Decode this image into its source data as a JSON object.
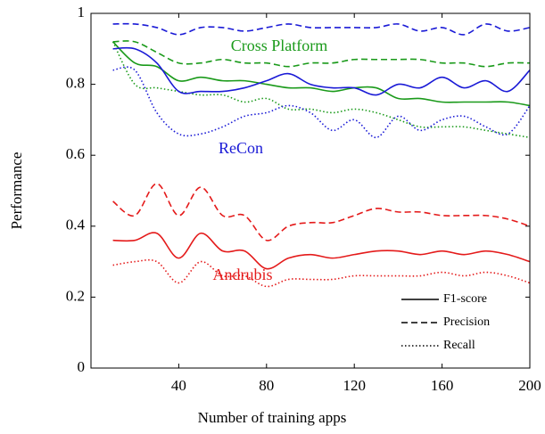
{
  "chart_data": {
    "type": "line",
    "xlabel": "Number of training apps",
    "ylabel": "Performance",
    "x": [
      10,
      20,
      30,
      40,
      50,
      60,
      70,
      80,
      90,
      100,
      110,
      120,
      130,
      140,
      150,
      160,
      170,
      180,
      190,
      200
    ],
    "xlim": [
      0,
      200
    ],
    "xticks": [
      40,
      80,
      120,
      160,
      200
    ],
    "ylim": [
      0,
      1
    ],
    "yticks": [
      0,
      0.2,
      0.4,
      0.6,
      0.8,
      1
    ],
    "legend_position": "lower right",
    "legend": [
      {
        "label": "F1-score",
        "dash": "solid"
      },
      {
        "label": "Precision",
        "dash": "dashed"
      },
      {
        "label": "Recall",
        "dash": "dotted"
      }
    ],
    "methods": [
      {
        "label": "Cross Platform",
        "color": "#1a9a1a",
        "lines": [
          [
            0.92,
            0.86,
            0.85,
            0.81,
            0.82,
            0.81,
            0.81,
            0.8,
            0.79,
            0.79,
            0.78,
            0.79,
            0.79,
            0.76,
            0.76,
            0.75,
            0.75,
            0.75,
            0.75,
            0.74
          ],
          [
            0.92,
            0.92,
            0.89,
            0.86,
            0.86,
            0.87,
            0.86,
            0.86,
            0.85,
            0.86,
            0.86,
            0.87,
            0.87,
            0.87,
            0.87,
            0.86,
            0.86,
            0.85,
            0.86,
            0.86
          ],
          [
            0.92,
            0.8,
            0.79,
            0.78,
            0.77,
            0.77,
            0.75,
            0.76,
            0.73,
            0.73,
            0.72,
            0.73,
            0.72,
            0.7,
            0.68,
            0.68,
            0.68,
            0.67,
            0.66,
            0.65
          ]
        ]
      },
      {
        "label": "ReCon",
        "color": "#1a1ad6",
        "lines": [
          [
            0.9,
            0.9,
            0.86,
            0.78,
            0.78,
            0.78,
            0.79,
            0.81,
            0.83,
            0.8,
            0.79,
            0.79,
            0.77,
            0.8,
            0.79,
            0.82,
            0.79,
            0.81,
            0.78,
            0.84
          ],
          [
            0.97,
            0.97,
            0.96,
            0.94,
            0.96,
            0.96,
            0.95,
            0.96,
            0.97,
            0.96,
            0.96,
            0.96,
            0.96,
            0.97,
            0.95,
            0.96,
            0.94,
            0.97,
            0.95,
            0.96
          ],
          [
            0.84,
            0.84,
            0.72,
            0.66,
            0.66,
            0.68,
            0.71,
            0.72,
            0.74,
            0.72,
            0.67,
            0.7,
            0.65,
            0.71,
            0.67,
            0.7,
            0.71,
            0.68,
            0.66,
            0.74
          ]
        ]
      },
      {
        "label": "Andrubis",
        "color": "#e41a1a",
        "lines": [
          [
            0.36,
            0.36,
            0.38,
            0.31,
            0.38,
            0.33,
            0.33,
            0.28,
            0.31,
            0.32,
            0.31,
            0.32,
            0.33,
            0.33,
            0.32,
            0.33,
            0.32,
            0.33,
            0.32,
            0.3
          ],
          [
            0.47,
            0.43,
            0.52,
            0.43,
            0.51,
            0.43,
            0.43,
            0.36,
            0.4,
            0.41,
            0.41,
            0.43,
            0.45,
            0.44,
            0.44,
            0.43,
            0.43,
            0.43,
            0.42,
            0.4
          ],
          [
            0.29,
            0.3,
            0.3,
            0.24,
            0.3,
            0.26,
            0.26,
            0.23,
            0.25,
            0.25,
            0.25,
            0.26,
            0.26,
            0.26,
            0.26,
            0.27,
            0.26,
            0.27,
            0.26,
            0.24
          ]
        ]
      }
    ]
  }
}
